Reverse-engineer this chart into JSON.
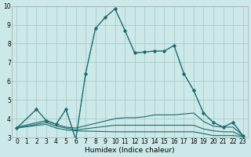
{
  "xlabel": "Humidex (Indice chaleur)",
  "background_color": "#cce8e8",
  "grid_color": "#aacccc",
  "line_color": "#1a6b6b",
  "xlim": [
    -0.5,
    23.5
  ],
  "ylim": [
    3,
    10
  ],
  "yticks": [
    3,
    4,
    5,
    6,
    7,
    8,
    9,
    10
  ],
  "xticks": [
    0,
    1,
    2,
    3,
    4,
    5,
    6,
    7,
    8,
    9,
    10,
    11,
    12,
    13,
    14,
    15,
    16,
    17,
    18,
    19,
    20,
    21,
    22,
    23
  ],
  "line1_x": [
    0,
    2,
    3,
    4,
    5,
    6,
    7,
    8,
    9,
    10,
    11,
    12,
    13,
    14,
    15,
    16,
    17,
    18,
    19,
    20,
    21,
    22,
    23
  ],
  "line1_y": [
    3.5,
    4.5,
    3.9,
    3.7,
    4.5,
    2.9,
    6.4,
    8.8,
    9.4,
    9.85,
    8.7,
    7.5,
    7.55,
    7.6,
    7.6,
    7.9,
    6.4,
    5.5,
    4.3,
    3.8,
    3.55,
    3.8,
    3.1
  ],
  "line2_x": [
    0,
    2,
    3,
    4,
    5,
    6,
    7,
    8,
    9,
    10,
    11,
    12,
    13,
    14,
    15,
    16,
    17,
    18,
    19,
    20,
    21,
    22,
    23
  ],
  "line2_y": [
    3.5,
    4.5,
    3.9,
    3.7,
    4.5,
    2.9,
    6.4,
    8.8,
    9.4,
    9.85,
    8.7,
    7.5,
    7.55,
    7.6,
    7.6,
    7.9,
    6.4,
    5.5,
    4.3,
    3.8,
    3.55,
    3.8,
    3.1
  ],
  "line3_x": [
    0,
    3,
    4,
    5,
    6,
    10,
    11,
    12,
    13,
    14,
    15,
    16,
    17,
    18,
    19,
    20,
    21,
    22,
    23
  ],
  "line3_y": [
    3.55,
    3.9,
    3.7,
    3.55,
    3.5,
    4.0,
    4.05,
    4.05,
    4.1,
    4.2,
    4.2,
    4.2,
    4.25,
    4.3,
    3.85,
    3.6,
    3.55,
    3.55,
    3.1
  ],
  "line4_x": [
    0,
    3,
    4,
    5,
    6,
    10,
    11,
    12,
    13,
    14,
    15,
    16,
    17,
    18,
    19,
    20,
    21,
    22,
    23
  ],
  "line4_y": [
    3.5,
    3.7,
    3.5,
    3.4,
    3.35,
    3.3,
    3.3,
    3.3,
    3.3,
    3.3,
    3.3,
    3.3,
    3.3,
    3.3,
    3.2,
    3.1,
    3.1,
    3.1,
    3.05
  ],
  "line5_x": [
    0,
    3,
    4,
    5,
    6,
    10,
    11,
    12,
    13,
    14,
    15,
    16,
    17,
    18,
    19,
    20,
    21,
    22,
    23
  ],
  "line5_y": [
    3.5,
    3.8,
    3.6,
    3.5,
    3.4,
    3.65,
    3.65,
    3.65,
    3.65,
    3.65,
    3.65,
    3.65,
    3.65,
    3.65,
    3.45,
    3.35,
    3.3,
    3.3,
    3.05
  ]
}
